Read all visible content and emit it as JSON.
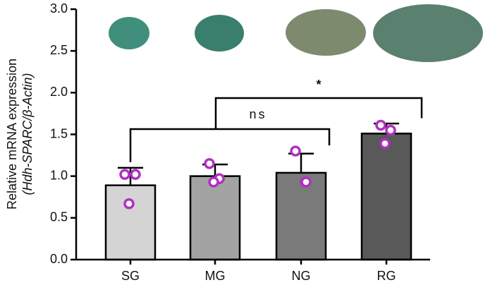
{
  "chart_data": {
    "type": "bar",
    "ylabel": [
      "Relative mRNA expression",
      "(Hdh-SPARC/β-Actin)"
    ],
    "categories": [
      "SG",
      "MG",
      "NG",
      "RG"
    ],
    "values": [
      0.89,
      1.0,
      1.04,
      1.51
    ],
    "errors": [
      0.21,
      0.14,
      0.23,
      0.12
    ],
    "points": [
      [
        1.02,
        1.02,
        0.67
      ],
      [
        1.15,
        0.97,
        0.93
      ],
      [
        1.3,
        0.93,
        0.93
      ],
      [
        1.61,
        1.55,
        1.39
      ]
    ],
    "colors": [
      "#d4d4d4",
      "#a3a3a3",
      "#7a7a7a",
      "#595959"
    ],
    "point_color": "#b030c0",
    "ylim": [
      0,
      3.0
    ],
    "yticks": [
      {
        "value": 0,
        "label": "0.0"
      },
      {
        "value": 0.5,
        "label": "0.5"
      },
      {
        "value": 1,
        "label": "1.0"
      },
      {
        "value": 1.5,
        "label": "1.5"
      },
      {
        "value": 2,
        "label": "2.0"
      },
      {
        "value": 2.5,
        "label": "2.5"
      },
      {
        "value": 3,
        "label": "3.0"
      }
    ],
    "annotations": [
      "ns",
      "*"
    ]
  }
}
